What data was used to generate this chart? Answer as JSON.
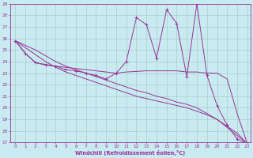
{
  "xlabel": "Windchill (Refroidissement éolien,°C)",
  "xlim": [
    -0.5,
    23.3
  ],
  "ylim": [
    17,
    29
  ],
  "xticks": [
    0,
    1,
    2,
    3,
    4,
    5,
    6,
    7,
    8,
    9,
    10,
    11,
    12,
    13,
    14,
    15,
    16,
    17,
    18,
    19,
    20,
    21,
    22,
    23
  ],
  "yticks": [
    17,
    18,
    19,
    20,
    21,
    22,
    23,
    24,
    25,
    26,
    27,
    28,
    29
  ],
  "bg_color": "#c8eaf0",
  "line_color": "#993399",
  "grid_color": "#99ccbb",
  "line_jagged": [
    [
      0,
      25.8
    ],
    [
      1,
      24.7
    ],
    [
      2,
      23.9
    ],
    [
      3,
      23.7
    ],
    [
      4,
      23.6
    ],
    [
      5,
      23.3
    ],
    [
      6,
      23.2
    ],
    [
      7,
      23.0
    ],
    [
      8,
      22.8
    ],
    [
      9,
      22.5
    ],
    [
      10,
      23.0
    ],
    [
      11,
      24.0
    ],
    [
      12,
      27.8
    ],
    [
      13,
      27.2
    ],
    [
      14,
      24.3
    ],
    [
      15,
      28.5
    ],
    [
      16,
      27.3
    ],
    [
      17,
      22.7
    ],
    [
      18,
      29.0
    ],
    [
      19,
      22.8
    ],
    [
      20,
      20.2
    ],
    [
      21,
      18.5
    ],
    [
      22,
      17.3
    ],
    [
      23,
      16.9
    ]
  ],
  "line_smooth": [
    [
      0,
      25.8
    ],
    [
      1,
      24.7
    ],
    [
      2,
      23.9
    ],
    [
      3,
      23.75
    ],
    [
      4,
      23.6
    ],
    [
      5,
      23.5
    ],
    [
      6,
      23.4
    ],
    [
      7,
      23.3
    ],
    [
      8,
      23.2
    ],
    [
      9,
      23.1
    ],
    [
      10,
      23.0
    ],
    [
      11,
      23.1
    ],
    [
      12,
      23.15
    ],
    [
      13,
      23.2
    ],
    [
      14,
      23.2
    ],
    [
      15,
      23.2
    ],
    [
      16,
      23.2
    ],
    [
      17,
      23.1
    ],
    [
      18,
      23.1
    ],
    [
      19,
      23.0
    ],
    [
      20,
      23.0
    ],
    [
      21,
      22.5
    ],
    [
      22,
      19.5
    ],
    [
      23,
      16.9
    ]
  ],
  "line_diag1": [
    [
      0,
      25.8
    ],
    [
      1,
      25.2
    ],
    [
      2,
      24.6
    ],
    [
      3,
      24.0
    ],
    [
      4,
      23.5
    ],
    [
      5,
      23.1
    ],
    [
      6,
      22.8
    ],
    [
      7,
      22.5
    ],
    [
      8,
      22.2
    ],
    [
      9,
      21.9
    ],
    [
      10,
      21.6
    ],
    [
      11,
      21.3
    ],
    [
      12,
      21.0
    ],
    [
      13,
      20.8
    ],
    [
      14,
      20.6
    ],
    [
      15,
      20.4
    ],
    [
      16,
      20.2
    ],
    [
      17,
      20.0
    ],
    [
      18,
      19.7
    ],
    [
      19,
      19.4
    ],
    [
      20,
      19.0
    ],
    [
      21,
      18.4
    ],
    [
      22,
      17.8
    ],
    [
      23,
      16.9
    ]
  ],
  "line_diag2": [
    [
      0,
      25.8
    ],
    [
      1,
      25.4
    ],
    [
      2,
      25.0
    ],
    [
      3,
      24.5
    ],
    [
      4,
      24.0
    ],
    [
      5,
      23.6
    ],
    [
      6,
      23.3
    ],
    [
      7,
      23.0
    ],
    [
      8,
      22.7
    ],
    [
      9,
      22.4
    ],
    [
      10,
      22.1
    ],
    [
      11,
      21.8
    ],
    [
      12,
      21.5
    ],
    [
      13,
      21.3
    ],
    [
      14,
      21.0
    ],
    [
      15,
      20.8
    ],
    [
      16,
      20.5
    ],
    [
      17,
      20.3
    ],
    [
      18,
      20.0
    ],
    [
      19,
      19.5
    ],
    [
      20,
      19.0
    ],
    [
      21,
      18.3
    ],
    [
      22,
      17.6
    ],
    [
      23,
      16.9
    ]
  ]
}
